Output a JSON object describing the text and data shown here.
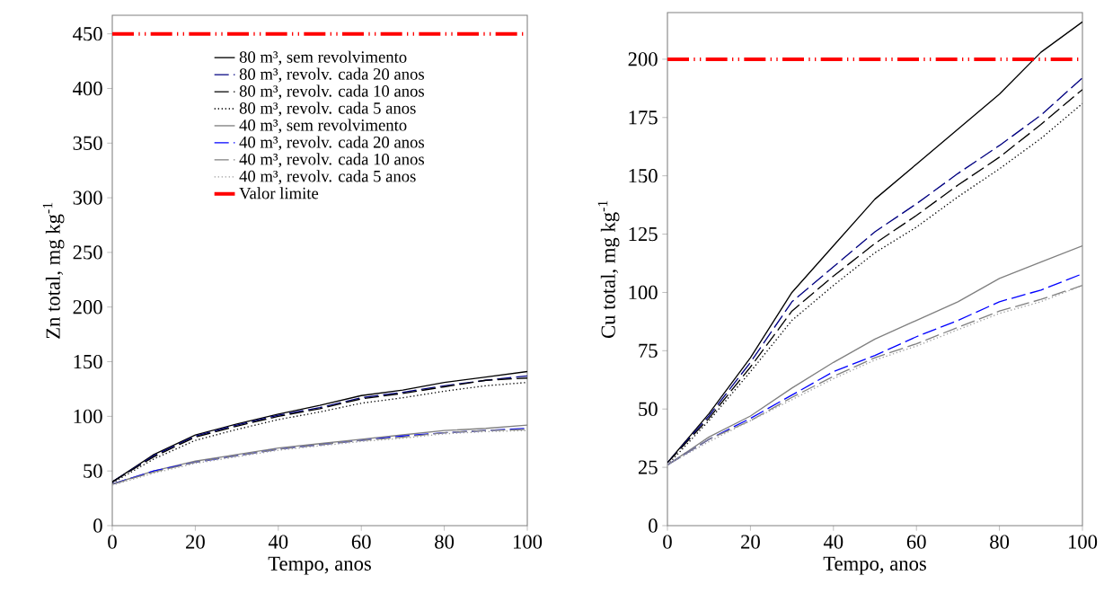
{
  "chart_data": [
    {
      "type": "line",
      "xlabel": "Tempo, anos",
      "ylabel": "Zn total, mg kg$^{-1}$",
      "xlim": [
        0,
        100
      ],
      "ylim": [
        0,
        467
      ],
      "xticks": [
        0,
        20,
        40,
        60,
        80,
        100
      ],
      "yticks": [
        0,
        50,
        100,
        150,
        200,
        250,
        300,
        350,
        400,
        450
      ],
      "grid": false,
      "legend": "top",
      "marker": "none",
      "x": [
        0,
        10,
        20,
        30,
        40,
        50,
        60,
        70,
        80,
        90,
        100
      ],
      "series": [
        {
          "name": "80 m³, sem revolvimento",
          "color": "#000000",
          "line_style": "solid",
          "values": [
            40,
            65,
            83,
            93,
            102,
            110,
            119,
            124,
            131,
            136,
            141
          ]
        },
        {
          "name": "80 m³, revolv. cada 20 anos",
          "color": "#000080",
          "line_style": "dashed",
          "values": [
            40,
            64,
            82,
            92,
            101,
            108,
            117,
            122,
            128,
            133,
            137
          ]
        },
        {
          "name": "80 m³, revolv. cada 10 anos",
          "color": "#000000",
          "line_style": "dashed",
          "values": [
            40,
            63,
            81,
            91,
            100,
            107,
            116,
            121,
            127,
            133,
            135
          ]
        },
        {
          "name": "80 m³, revolv. cada 5 anos",
          "color": "#000000",
          "line_style": "dotted",
          "values": [
            39,
            61,
            78,
            88,
            97,
            104,
            112,
            117,
            123,
            128,
            131
          ]
        },
        {
          "name": "40 m³, sem revolvimento",
          "color": "#808080",
          "line_style": "solid",
          "values": [
            38,
            50,
            59,
            65,
            71,
            75,
            79,
            83,
            87,
            89,
            92
          ]
        },
        {
          "name": "40 m³, revolv. cada 20 anos",
          "color": "#0000ff",
          "line_style": "dashed",
          "values": [
            38,
            50,
            58,
            64,
            70,
            74,
            78,
            82,
            85,
            87,
            89
          ]
        },
        {
          "name": "40 m³, revolv. cada 10 anos",
          "color": "#808080",
          "line_style": "dashed",
          "values": [
            38,
            49,
            58,
            64,
            70,
            74,
            78,
            81,
            85,
            87,
            88
          ]
        },
        {
          "name": "40 m³, revolv. cada 5 anos",
          "color": "#a0a0a0",
          "line_style": "dotted",
          "values": [
            37,
            48,
            57,
            63,
            69,
            73,
            77,
            80,
            84,
            86,
            87
          ]
        }
      ],
      "ref_lines": [
        {
          "axis": "y",
          "value": 450,
          "label": "Valor limite",
          "color": "#ff0000",
          "line_style": "dashdotdot"
        }
      ]
    },
    {
      "type": "line",
      "xlabel": "Tempo, anos",
      "ylabel": "Cu total, mg kg$^{-1}$",
      "xlim": [
        0,
        100
      ],
      "ylim": [
        0,
        220
      ],
      "xticks": [
        0,
        20,
        40,
        60,
        80,
        100
      ],
      "yticks": [
        0,
        25,
        50,
        75,
        100,
        125,
        150,
        175,
        200
      ],
      "grid": false,
      "legend": false,
      "marker": "none",
      "x": [
        0,
        10,
        20,
        30,
        40,
        50,
        60,
        70,
        80,
        90,
        100
      ],
      "series": [
        {
          "color": "#000000",
          "line_style": "solid",
          "values": [
            27,
            48,
            72,
            100,
            120,
            140,
            155,
            170,
            185,
            203,
            216
          ]
        },
        {
          "color": "#000080",
          "line_style": "dashed",
          "values": [
            27,
            47,
            70,
            96,
            111,
            126,
            138,
            151,
            163,
            176,
            192
          ]
        },
        {
          "color": "#000000",
          "line_style": "dashed",
          "values": [
            27,
            46,
            68,
            92,
            107,
            121,
            133,
            146,
            158,
            172,
            187
          ]
        },
        {
          "color": "#000000",
          "line_style": "dotted",
          "values": [
            26,
            45,
            66,
            88,
            103,
            117,
            128,
            141,
            153,
            166,
            181
          ]
        },
        {
          "color": "#808080",
          "line_style": "solid",
          "values": [
            26,
            38,
            47,
            59,
            70,
            80,
            88,
            96,
            106,
            113,
            120
          ]
        },
        {
          "color": "#0000ff",
          "line_style": "dashed",
          "values": [
            26,
            37,
            46,
            56,
            66,
            73,
            81,
            88,
            96,
            101,
            108
          ]
        },
        {
          "color": "#808080",
          "line_style": "dashed",
          "values": [
            26,
            37,
            45,
            55,
            64,
            72,
            78,
            85,
            92,
            97,
            103
          ]
        },
        {
          "color": "#a0a0a0",
          "line_style": "dotted",
          "values": [
            26,
            36,
            45,
            54,
            63,
            71,
            77,
            84,
            91,
            96,
            103
          ]
        }
      ],
      "ref_lines": [
        {
          "axis": "y",
          "value": 200,
          "color": "#ff0000",
          "line_style": "dashdotdot"
        }
      ]
    }
  ]
}
